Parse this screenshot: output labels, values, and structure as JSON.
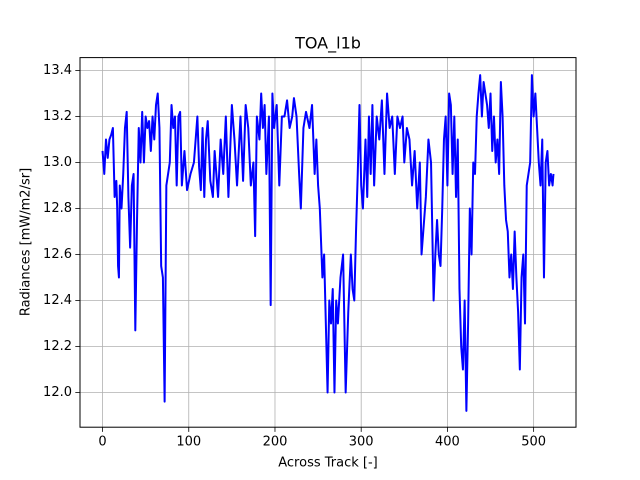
{
  "chart_data": {
    "type": "line",
    "title": "TOA_l1b",
    "x_label": "Across Track [-]",
    "y_label": "Radiances [mW/m2/sr]",
    "grid": true,
    "xlim": [
      -26.15,
      549.15
    ],
    "ylim": [
      11.849,
      13.456
    ],
    "xticks": [
      0,
      100,
      200,
      300,
      400,
      500
    ],
    "yticks": [
      {
        "value": 12,
        "label": "12.0"
      },
      12.2,
      12.4,
      12.6,
      12.8,
      {
        "value": 13,
        "label": "13.0"
      },
      13.2,
      13.4
    ],
    "x": [
      0,
      2,
      4,
      6,
      8,
      10,
      12,
      14,
      16,
      17,
      18,
      19,
      20,
      22,
      24,
      26,
      28,
      30,
      32,
      34,
      36,
      38,
      40,
      42,
      44,
      46,
      48,
      50,
      52,
      54,
      56,
      58,
      60,
      62,
      64,
      66,
      68,
      70,
      72,
      74,
      76,
      78,
      80,
      82,
      84,
      86,
      88,
      90,
      92,
      95,
      98,
      102,
      106,
      110,
      112,
      114,
      116,
      118,
      120,
      122,
      125,
      128,
      130,
      134,
      137,
      140,
      143,
      146,
      150,
      153,
      156,
      160,
      163,
      166,
      169,
      172,
      175,
      177,
      179,
      182,
      184,
      186,
      188,
      190,
      193,
      195,
      197,
      199,
      202,
      205,
      208,
      211,
      214,
      217,
      220,
      222,
      225,
      228,
      230,
      233,
      236,
      240,
      243,
      246,
      248,
      250,
      252,
      255,
      257,
      259,
      261,
      263,
      265,
      267,
      269,
      271,
      273,
      276,
      279,
      282,
      285,
      288,
      290,
      292,
      294,
      296,
      298,
      300,
      302,
      305,
      307,
      309,
      311,
      313,
      315,
      318,
      321,
      324,
      327,
      330,
      333,
      336,
      339,
      342,
      345,
      348,
      350,
      353,
      356,
      359,
      362,
      365,
      368,
      370,
      372,
      375,
      378,
      381,
      384,
      386,
      388,
      390,
      392,
      394,
      396,
      398,
      400,
      402,
      404,
      406,
      408,
      410,
      412,
      414,
      416,
      418,
      420,
      422,
      424,
      426,
      428,
      430,
      432,
      434,
      436,
      438,
      440,
      442,
      444,
      446,
      448,
      450,
      452,
      454,
      456,
      458,
      460,
      462,
      464,
      466,
      468,
      470,
      472,
      474,
      476,
      478,
      480,
      482,
      484,
      486,
      488,
      490,
      492,
      494,
      496,
      498,
      500,
      502,
      504,
      506,
      508,
      510,
      512,
      514,
      516,
      518,
      520,
      522,
      523
    ],
    "series": [
      {
        "color": "#0000ff",
        "values": [
          13.05,
          12.95,
          13.1,
          13.02,
          13.1,
          13.12,
          13.15,
          12.85,
          12.92,
          12.8,
          12.55,
          12.5,
          12.9,
          12.8,
          12.95,
          13.15,
          13.22,
          12.85,
          12.63,
          12.9,
          12.95,
          12.27,
          12.75,
          13.15,
          13.0,
          13.22,
          13.0,
          13.2,
          13.15,
          13.18,
          13.05,
          13.2,
          13.1,
          13.25,
          13.3,
          13.15,
          12.55,
          12.5,
          11.96,
          12.9,
          12.95,
          13.0,
          13.25,
          13.15,
          13.2,
          12.9,
          13.2,
          13.22,
          12.9,
          13.05,
          12.88,
          12.95,
          13.0,
          13.2,
          12.98,
          12.88,
          13.15,
          12.85,
          13.1,
          13.18,
          12.92,
          12.85,
          13.05,
          12.85,
          13.1,
          12.95,
          13.2,
          12.85,
          13.25,
          13.1,
          12.9,
          13.2,
          12.92,
          13.25,
          13.15,
          12.9,
          13.0,
          12.68,
          13.2,
          13.1,
          13.3,
          13.15,
          13.25,
          12.95,
          13.2,
          12.38,
          13.3,
          13.15,
          13.25,
          12.9,
          13.2,
          13.2,
          13.27,
          13.15,
          13.2,
          13.28,
          13.2,
          12.95,
          12.8,
          13.15,
          13.22,
          13.15,
          13.25,
          12.95,
          13.1,
          12.9,
          12.8,
          12.5,
          12.6,
          12.3,
          12.0,
          12.4,
          12.3,
          12.45,
          12.0,
          12.4,
          12.3,
          12.5,
          12.6,
          12.0,
          12.35,
          12.6,
          12.45,
          12.4,
          12.7,
          12.95,
          13.25,
          12.9,
          12.8,
          13.1,
          12.85,
          13.2,
          12.95,
          13.25,
          12.9,
          13.2,
          13.1,
          13.27,
          12.95,
          13.3,
          13.15,
          13.2,
          12.95,
          13.2,
          13.15,
          13.2,
          13.0,
          13.15,
          13.1,
          12.9,
          13.05,
          12.8,
          13.0,
          12.6,
          12.7,
          12.85,
          13.1,
          13.0,
          12.4,
          12.6,
          12.75,
          12.6,
          12.55,
          12.8,
          13.1,
          13.2,
          12.9,
          13.3,
          13.25,
          12.95,
          13.2,
          12.85,
          13.1,
          12.45,
          12.2,
          12.1,
          12.4,
          11.92,
          12.3,
          12.8,
          12.6,
          13.0,
          12.95,
          13.2,
          13.3,
          13.38,
          13.2,
          13.35,
          13.3,
          13.25,
          13.15,
          13.3,
          13.05,
          13.2,
          13.0,
          13.1,
          12.95,
          13.35,
          13.2,
          12.9,
          12.75,
          12.7,
          12.5,
          12.6,
          12.45,
          12.7,
          12.5,
          12.35,
          12.1,
          12.5,
          12.6,
          12.3,
          12.9,
          12.95,
          13.0,
          13.38,
          13.2,
          13.3,
          13.15,
          13.0,
          12.9,
          13.1,
          12.5,
          13.0,
          13.05,
          12.9,
          12.95,
          12.9,
          12.95
        ]
      }
    ]
  }
}
